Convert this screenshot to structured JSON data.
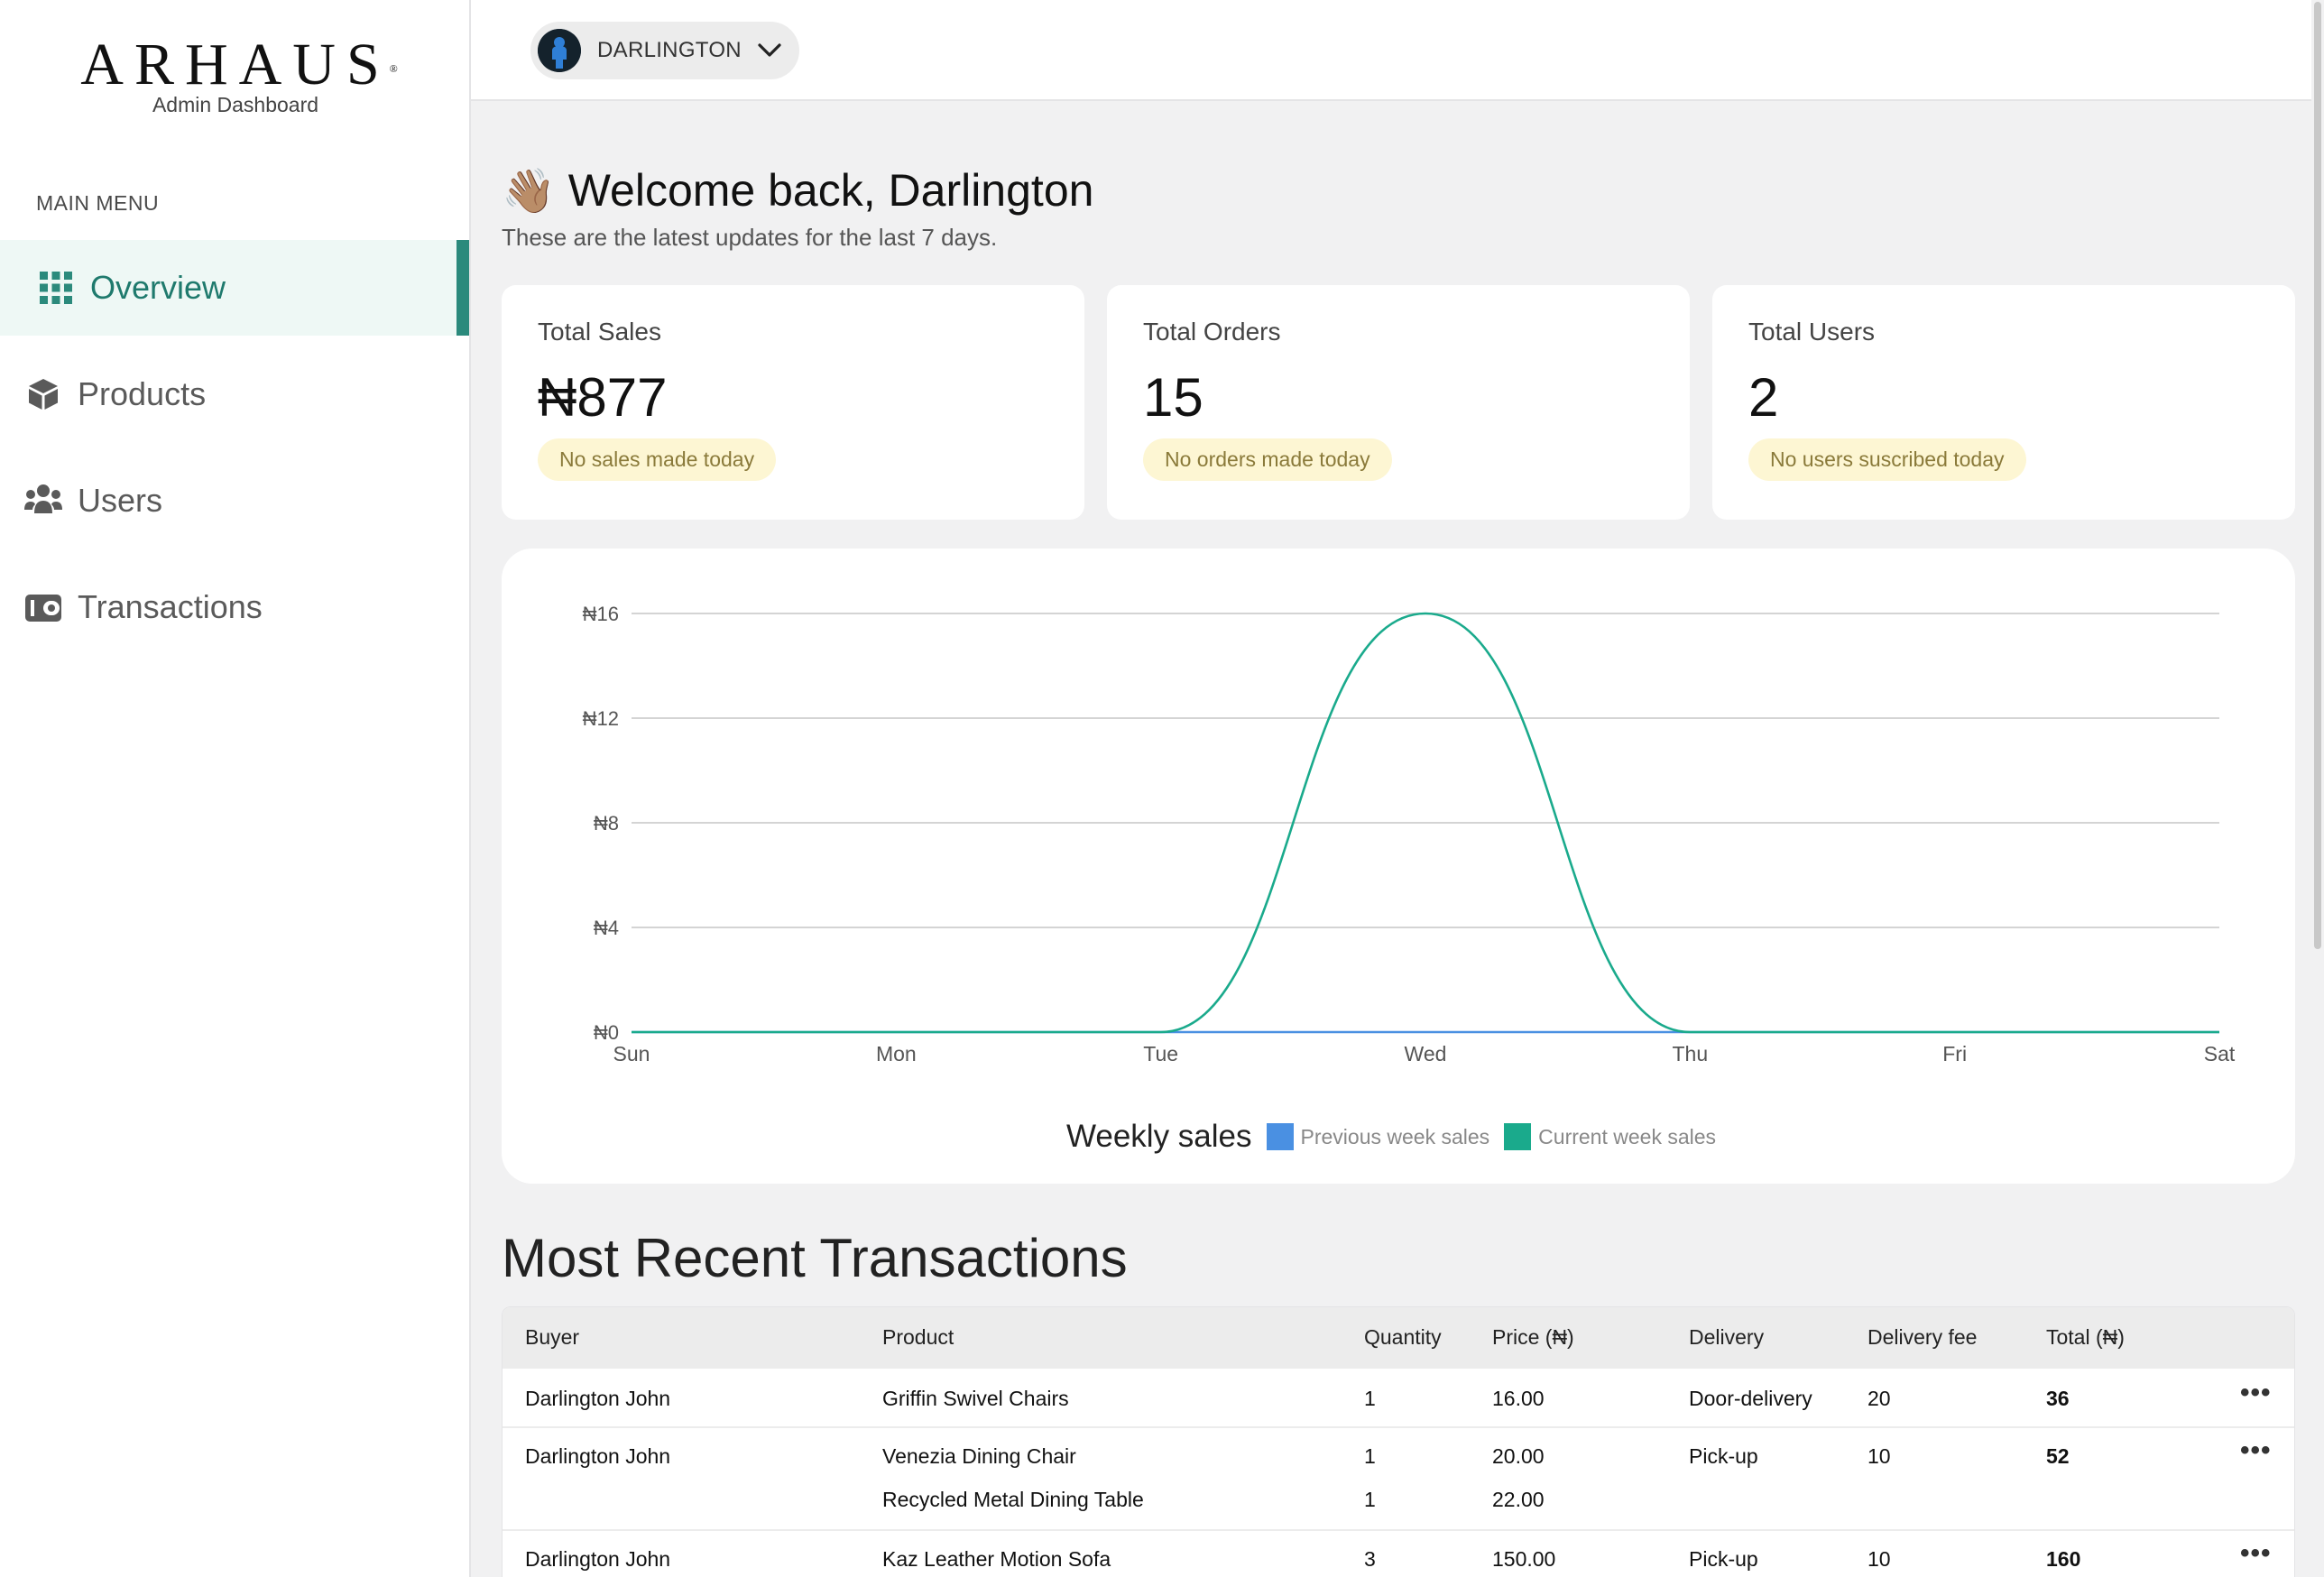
{
  "brand": {
    "logo_text": "ARHAUS",
    "subtitle": "Admin Dashboard"
  },
  "sidebar": {
    "menu_heading": "MAIN MENU",
    "items": [
      {
        "label": "Overview",
        "icon": "grid-icon",
        "active": true
      },
      {
        "label": "Products",
        "icon": "cube-icon",
        "active": false
      },
      {
        "label": "Users",
        "icon": "users-icon",
        "active": false
      },
      {
        "label": "Transactions",
        "icon": "wallet-icon",
        "active": false
      }
    ]
  },
  "header": {
    "user_name": "DARLINGTON"
  },
  "welcome": {
    "emoji": "👋🏽",
    "title": "Welcome back, Darlington",
    "subtitle": "These are the latest updates for the last 7 days."
  },
  "stats": [
    {
      "title": "Total Sales",
      "value": "₦877",
      "badge": "No sales made today"
    },
    {
      "title": "Total Orders",
      "value": "15",
      "badge": "No orders made today"
    },
    {
      "title": "Total Users",
      "value": "2",
      "badge": "No users suscribed today"
    }
  ],
  "chart_data": {
    "type": "area",
    "x": [
      "Sun",
      "Mon",
      "Tue",
      "Wed",
      "Thu",
      "Fri",
      "Sat"
    ],
    "series": [
      {
        "name": "Previous week sales",
        "values": [
          0,
          0,
          0,
          0,
          0,
          0,
          0
        ],
        "color": "#4a90e2"
      },
      {
        "name": "Current week sales",
        "values": [
          0,
          0,
          0,
          16,
          0,
          0,
          0
        ],
        "color": "#1aaa8c"
      }
    ],
    "y_ticks": [
      "₦0",
      "₦4",
      "₦8",
      "₦12",
      "₦16"
    ],
    "ylim": [
      0,
      16
    ],
    "grid": true,
    "legend_title": "Weekly sales",
    "legend_position": "bottom"
  },
  "transactions": {
    "title": "Most Recent Transactions",
    "columns": [
      "Buyer",
      "Product",
      "Quantity",
      "Price (₦)",
      "Delivery",
      "Delivery fee",
      "Total (₦)"
    ],
    "rows": [
      {
        "buyer": "Darlington John",
        "items": [
          {
            "product": "Griffin Swivel Chairs",
            "quantity": "1",
            "price": "16.00"
          }
        ],
        "delivery": "Door-delivery",
        "fee": "20",
        "total": "36"
      },
      {
        "buyer": "Darlington John",
        "items": [
          {
            "product": "Venezia Dining Chair",
            "quantity": "1",
            "price": "20.00"
          },
          {
            "product": "Recycled Metal Dining Table",
            "quantity": "1",
            "price": "22.00"
          }
        ],
        "delivery": "Pick-up",
        "fee": "10",
        "total": "52"
      },
      {
        "buyer": "Darlington John",
        "items": [
          {
            "product": "Kaz Leather Motion Sofa",
            "quantity": "3",
            "price": "150.00"
          }
        ],
        "delivery": "Pick-up",
        "fee": "10",
        "total": "160"
      }
    ],
    "more_icon": "•••"
  }
}
